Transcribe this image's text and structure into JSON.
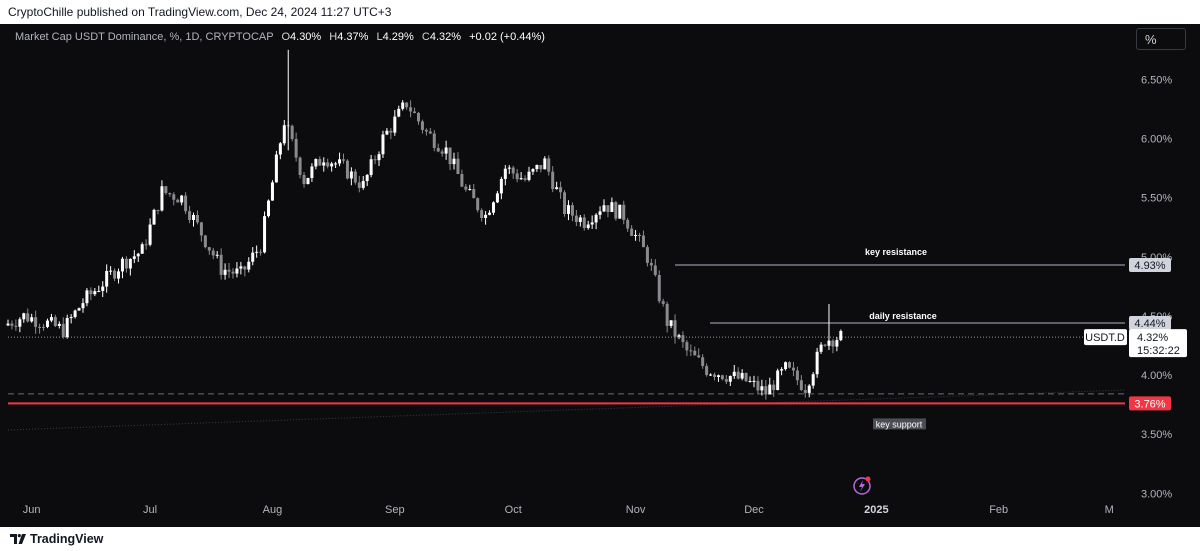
{
  "header": {
    "published": "CryptoChille published on TradingView.com, Dec 24, 2024 11:27 UTC+3"
  },
  "legend": {
    "symbol": "Market Cap USDT Dominance, %, 1D, CRYPTOCAP",
    "o_label": "O",
    "o": "4.30%",
    "h_label": "H",
    "h": "4.37%",
    "l_label": "L",
    "l": "4.29%",
    "c_label": "C",
    "c": "4.32%",
    "change": "+0.02 (+0.44%)"
  },
  "scale_button": "%",
  "footer": {
    "brand": "TradingView"
  },
  "annotations": {
    "key_resistance": "key resistance",
    "daily_resistance": "daily resistance",
    "key_support": "key support"
  },
  "price_tags": {
    "key_resistance": "4.93%",
    "daily_resistance": "4.44%",
    "current_symbol": "USDT.D",
    "current_price": "4.32%",
    "countdown": "15:32:22",
    "key_support": "3.76%"
  },
  "colors": {
    "background": "#0c0c0f",
    "up_candle": "#ffffff",
    "down_candle": "#8a8a8f",
    "support_line": "#f23645",
    "resistance_line": "#5d6068",
    "axis_text": "#b2b5be"
  },
  "chart_data": {
    "type": "candlestick",
    "title": "Market Cap USDT Dominance, %, 1D, CRYPTOCAP",
    "y_unit": "%",
    "ylim": [
      2.85,
      6.85
    ],
    "y_ticks": [
      "3.00%",
      "3.50%",
      "4.00%",
      "4.50%",
      "5.00%",
      "5.50%",
      "6.00%",
      "6.50%"
    ],
    "x_ticks": [
      "Jun",
      "Jul",
      "Aug",
      "Sep",
      "Oct",
      "Nov",
      "Dec",
      "2025",
      "Feb",
      "M"
    ],
    "x_range": [
      "2024-05-26",
      "2025-03-05"
    ],
    "levels": [
      {
        "name": "key resistance",
        "value": 4.93
      },
      {
        "name": "daily resistance",
        "value": 4.44
      },
      {
        "name": "key support",
        "value": 3.76
      }
    ],
    "current_price": 4.32,
    "series": [
      {
        "date": "2024-05-26",
        "close": 4.42
      },
      {
        "date": "2024-05-31",
        "close": 4.5
      },
      {
        "date": "2024-06-05",
        "close": 4.45
      },
      {
        "date": "2024-06-10",
        "close": 4.38
      },
      {
        "date": "2024-06-15",
        "close": 4.62
      },
      {
        "date": "2024-06-20",
        "close": 4.78
      },
      {
        "date": "2024-06-25",
        "close": 4.95
      },
      {
        "date": "2024-06-30",
        "close": 5.05
      },
      {
        "date": "2024-07-05",
        "close": 5.55
      },
      {
        "date": "2024-07-10",
        "close": 5.5
      },
      {
        "date": "2024-07-15",
        "close": 5.2
      },
      {
        "date": "2024-07-20",
        "close": 4.9
      },
      {
        "date": "2024-07-25",
        "close": 4.85
      },
      {
        "date": "2024-07-30",
        "close": 5.1
      },
      {
        "date": "2024-08-05",
        "close": 6.15
      },
      {
        "date": "2024-08-10",
        "close": 5.65
      },
      {
        "date": "2024-08-15",
        "close": 5.85
      },
      {
        "date": "2024-08-20",
        "close": 5.75
      },
      {
        "date": "2024-08-25",
        "close": 5.6
      },
      {
        "date": "2024-08-30",
        "close": 6.0
      },
      {
        "date": "2024-09-05",
        "close": 6.3
      },
      {
        "date": "2024-09-10",
        "close": 6.05
      },
      {
        "date": "2024-09-15",
        "close": 5.9
      },
      {
        "date": "2024-09-20",
        "close": 5.55
      },
      {
        "date": "2024-09-25",
        "close": 5.35
      },
      {
        "date": "2024-09-30",
        "close": 5.75
      },
      {
        "date": "2024-10-05",
        "close": 5.65
      },
      {
        "date": "2024-10-10",
        "close": 5.8
      },
      {
        "date": "2024-10-15",
        "close": 5.4
      },
      {
        "date": "2024-10-20",
        "close": 5.3
      },
      {
        "date": "2024-10-25",
        "close": 5.45
      },
      {
        "date": "2024-10-30",
        "close": 5.35
      },
      {
        "date": "2024-11-05",
        "close": 5.0
      },
      {
        "date": "2024-11-10",
        "close": 4.45
      },
      {
        "date": "2024-11-15",
        "close": 4.2
      },
      {
        "date": "2024-11-20",
        "close": 4.05
      },
      {
        "date": "2024-11-25",
        "close": 4.0
      },
      {
        "date": "2024-11-30",
        "close": 3.95
      },
      {
        "date": "2024-12-05",
        "close": 3.85
      },
      {
        "date": "2024-12-10",
        "close": 4.05
      },
      {
        "date": "2024-12-15",
        "close": 3.9
      },
      {
        "date": "2024-12-20",
        "close": 4.3
      },
      {
        "date": "2024-12-24",
        "close": 4.32
      }
    ]
  }
}
